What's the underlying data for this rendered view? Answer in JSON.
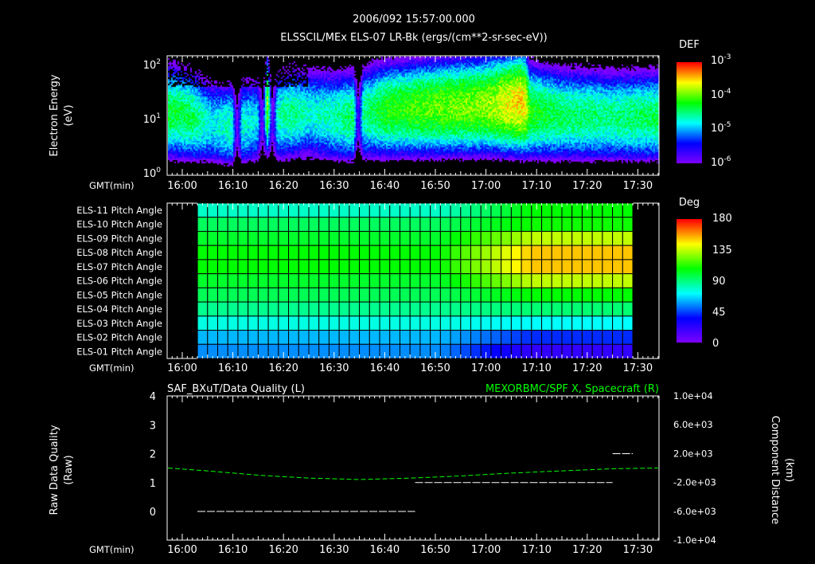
{
  "header": {
    "title": "2006/092 15:57:00.000",
    "subtitle": "ELSSCIL/MEx ELS-07 LR-Bk  (ergs/(cm**2-sr-sec-eV))"
  },
  "gmt_label": "GMT(min)",
  "time_ticks": [
    "16:00",
    "16:10",
    "16:20",
    "16:30",
    "16:40",
    "16:50",
    "17:00",
    "17:10",
    "17:20",
    "17:30"
  ],
  "chart_data": [
    {
      "type": "heatmap",
      "name": "spectrogram",
      "ylabel": "Electron Energy",
      "yunit": "(eV)",
      "yscale": "log",
      "ylim": [
        1,
        150
      ],
      "yticks": [
        {
          "base": "10",
          "exp": "0"
        },
        {
          "base": "10",
          "exp": "1"
        },
        {
          "base": "10",
          "exp": "2"
        }
      ],
      "xlim_min": [
        957.3,
        1054.5
      ],
      "colorbar": {
        "title": "DEF",
        "scale": "log",
        "range": [
          -6,
          -3
        ],
        "ticks": [
          {
            "base": "10",
            "exp": "-3"
          },
          {
            "base": "10",
            "exp": "-4"
          },
          {
            "base": "10",
            "exp": "-5"
          },
          {
            "base": "10",
            "exp": "-6"
          }
        ]
      },
      "profile": {
        "time_min": [
          957,
          962,
          966,
          970,
          971,
          972,
          975,
          976,
          977,
          978,
          979,
          982,
          985,
          990,
          994,
          995,
          996,
          1000,
          1010,
          1020,
          1027,
          1028,
          1029,
          1035,
          1045,
          1054
        ],
        "peak_log_def": [
          -4.3,
          -4.4,
          -4.8,
          -4.6,
          -6,
          -4.7,
          -4.8,
          -6,
          -3.9,
          -6,
          -4.6,
          -4.5,
          -4.7,
          -4.6,
          -4.4,
          -5.8,
          -4.5,
          -4.2,
          -4.0,
          -3.9,
          -3.5,
          -3.6,
          -4.2,
          -4.4,
          -4.5,
          -4.4
        ],
        "peak_energy_ev": [
          15,
          12,
          9,
          8,
          8,
          9,
          10,
          10,
          20,
          10,
          12,
          14,
          14,
          12,
          12,
          12,
          14,
          16,
          18,
          20,
          22,
          20,
          15,
          13,
          12,
          12
        ]
      }
    },
    {
      "type": "heatmap",
      "name": "pitch-angle",
      "rows": [
        "ELS-11 Pitch Angle",
        "ELS-10 Pitch Angle",
        "ELS-09 Pitch Angle",
        "ELS-08 Pitch Angle",
        "ELS-07 Pitch Angle",
        "ELS-06 Pitch Angle",
        "ELS-05 Pitch Angle",
        "ELS-04 Pitch Angle",
        "ELS-03 Pitch Angle",
        "ELS-02 Pitch Angle",
        "ELS-01 Pitch Angle"
      ],
      "time_start_min": 963,
      "time_end_min": 1049,
      "bin_min": 2,
      "early_deg": [
        80,
        95,
        102,
        108,
        108,
        102,
        96,
        88,
        76,
        62,
        56
      ],
      "late_deg": [
        108,
        110,
        135,
        152,
        152,
        135,
        108,
        92,
        72,
        42,
        22
      ],
      "transition_min": [
        1010,
        1028
      ],
      "colorbar": {
        "title": "Deg",
        "range": [
          0,
          180
        ],
        "ticks": [
          "180",
          "135",
          "90",
          "45",
          "0"
        ]
      }
    },
    {
      "type": "line",
      "name": "data-quality",
      "title_left": "SAF_BXuT/Data Quality (L)",
      "title_right": "MEXORBMC/SPF X, Spacecraft (R)",
      "ylabel_left": [
        "Raw Data Quality",
        "(Raw)"
      ],
      "ylim_left": [
        0,
        4
      ],
      "yticks_left": [
        "0",
        "1",
        "2",
        "3",
        "4"
      ],
      "ylabel_right": [
        "Component Distance",
        "(km)"
      ],
      "ylim_right": [
        -10000,
        10000
      ],
      "yticks_right": [
        "1.0e+04",
        "6.0e+03",
        "2.0e+03",
        "-2.0e+03",
        "-6.0e+03",
        "-1.0e+04"
      ],
      "quality_segments": [
        {
          "from": 963,
          "to": 1006,
          "value": 0
        },
        {
          "from": 1006,
          "to": 1045,
          "value": 1
        },
        {
          "from": 1045,
          "to": 1049,
          "value": 2
        }
      ],
      "spf_x": {
        "time_min": [
          957,
          965,
          975,
          985,
          995,
          1005,
          1015,
          1025,
          1035,
          1045,
          1054
        ],
        "km": [
          0,
          -400,
          -1000,
          -1400,
          -1600,
          -1400,
          -1100,
          -700,
          -400,
          -100,
          0
        ]
      },
      "colors": {
        "quality": "#ffffff",
        "spf_x": "#00ff00"
      }
    }
  ]
}
